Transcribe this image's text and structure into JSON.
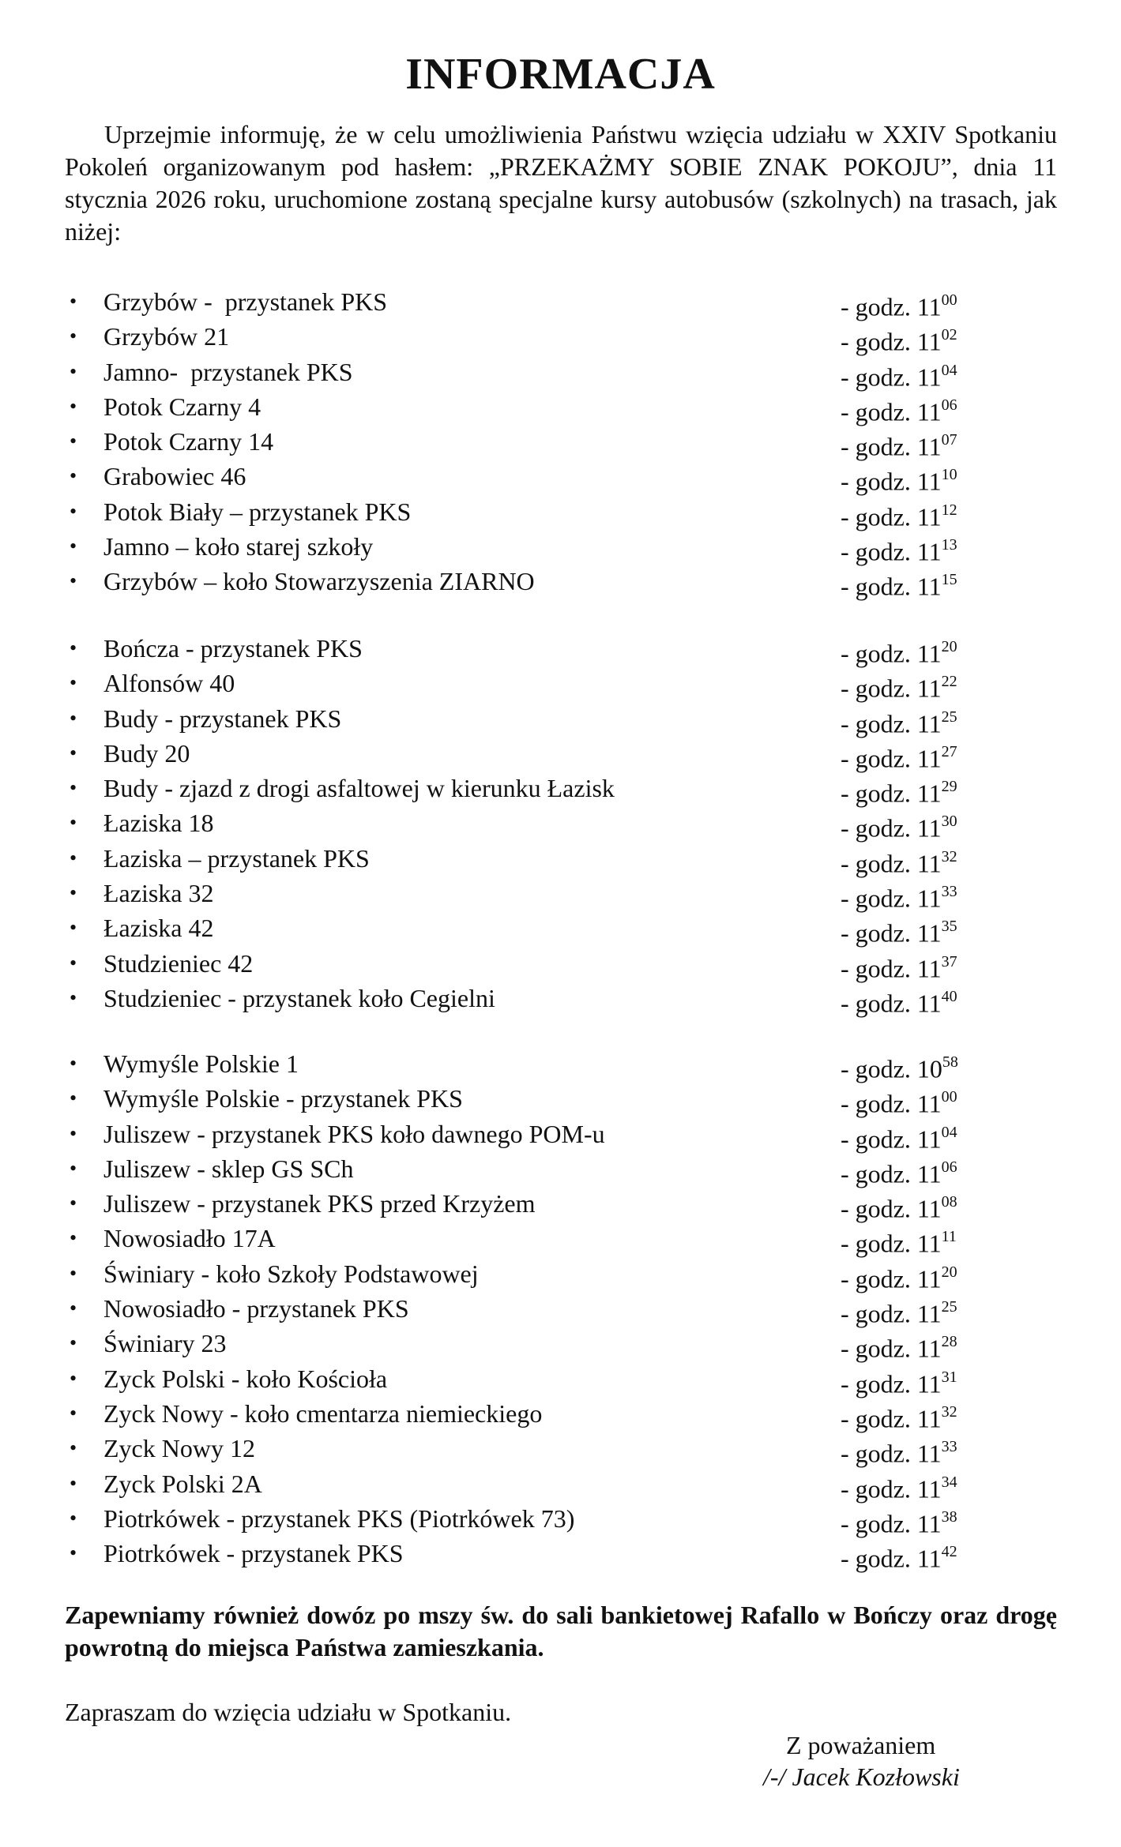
{
  "title": "INFORMACJA",
  "intro": "Uprzejmie informuję, że w celu umożliwienia Państwu wzięcia udziału w XXIV Spotkaniu Pokoleń organizowanym pod hasłem: „PRZEKAŻMY SOBIE ZNAK POKOJU”, dnia 11 stycznia 2026 roku, uruchomione zostaną specjalne kursy autobusów (szkolnych) na trasach, jak niżej:",
  "time_prefix": "- godz.",
  "groups": [
    [
      {
        "stop": "Grzybów -  przystanek PKS",
        "hour": "11",
        "min": "00"
      },
      {
        "stop": "Grzybów 21",
        "hour": "11",
        "min": "02"
      },
      {
        "stop": "Jamno-  przystanek PKS",
        "hour": "11",
        "min": "04"
      },
      {
        "stop": "Potok Czarny 4",
        "hour": "11",
        "min": "06"
      },
      {
        "stop": "Potok Czarny 14",
        "hour": "11",
        "min": "07"
      },
      {
        "stop": "Grabowiec 46",
        "hour": "11",
        "min": "10"
      },
      {
        "stop": "Potok Biały – przystanek PKS",
        "hour": "11",
        "min": "12"
      },
      {
        "stop": "Jamno – koło starej szkoły",
        "hour": "11",
        "min": "13"
      },
      {
        "stop": "Grzybów – koło Stowarzyszenia ZIARNO",
        "hour": "11",
        "min": "15"
      }
    ],
    [
      {
        "stop": "Bończa - przystanek PKS",
        "hour": "11",
        "min": "20"
      },
      {
        "stop": "Alfonsów 40",
        "hour": "11",
        "min": "22"
      },
      {
        "stop": "Budy - przystanek PKS",
        "hour": "11",
        "min": "25"
      },
      {
        "stop": "Budy 20",
        "hour": "11",
        "min": "27"
      },
      {
        "stop": "Budy - zjazd z drogi asfaltowej w kierunku Łazisk",
        "hour": "11",
        "min": "29"
      },
      {
        "stop": "Łaziska 18",
        "hour": "11",
        "min": "30"
      },
      {
        "stop": "Łaziska – przystanek PKS",
        "hour": "11",
        "min": "32"
      },
      {
        "stop": "Łaziska 32",
        "hour": "11",
        "min": "33"
      },
      {
        "stop": "Łaziska 42",
        "hour": "11",
        "min": "35"
      },
      {
        "stop": "Studzieniec 42",
        "hour": "11",
        "min": "37"
      },
      {
        "stop": "Studzieniec - przystanek koło Cegielni",
        "hour": "11",
        "min": "40"
      }
    ],
    [
      {
        "stop": "Wymyśle Polskie 1",
        "hour": "10",
        "min": "58"
      },
      {
        "stop": "Wymyśle Polskie - przystanek PKS",
        "hour": "11",
        "min": "00"
      },
      {
        "stop": "Juliszew - przystanek PKS koło dawnego POM-u",
        "hour": "11",
        "min": "04"
      },
      {
        "stop": "Juliszew - sklep GS SCh",
        "hour": "11",
        "min": "06"
      },
      {
        "stop": "Juliszew - przystanek PKS przed Krzyżem",
        "hour": "11",
        "min": "08"
      },
      {
        "stop": "Nowosiadło 17A",
        "hour": "11",
        "min": "11"
      },
      {
        "stop": "Świniary - koło Szkoły Podstawowej",
        "hour": "11",
        "min": "20"
      },
      {
        "stop": "Nowosiadło - przystanek PKS",
        "hour": "11",
        "min": "25"
      },
      {
        "stop": "Świniary 23",
        "hour": "11",
        "min": "28"
      },
      {
        "stop": "Zyck Polski - koło Kościoła",
        "hour": "11",
        "min": "31"
      },
      {
        "stop": "Zyck Nowy - koło cmentarza niemieckiego",
        "hour": "11",
        "min": "32"
      },
      {
        "stop": "Zyck Nowy 12",
        "hour": "11",
        "min": "33"
      },
      {
        "stop": "Zyck Polski 2A",
        "hour": "11",
        "min": "34"
      },
      {
        "stop": "Piotrkówek - przystanek PKS (Piotrkówek 73)",
        "hour": "11",
        "min": "38"
      },
      {
        "stop": "Piotrkówek - przystanek PKS",
        "hour": "11",
        "min": "42"
      }
    ]
  ],
  "note": "Zapewniamy również dowóz po mszy św. do sali bankietowej Rafallo w Bończy oraz drogę powrotną do miejsca Państwa zamieszkania.",
  "invite": "Zapraszam do wzięcia udziału w Spotkaniu.",
  "closing": "Z poważaniem",
  "signature": "/-/ Jacek Kozłowski",
  "bullet_icon": "•"
}
